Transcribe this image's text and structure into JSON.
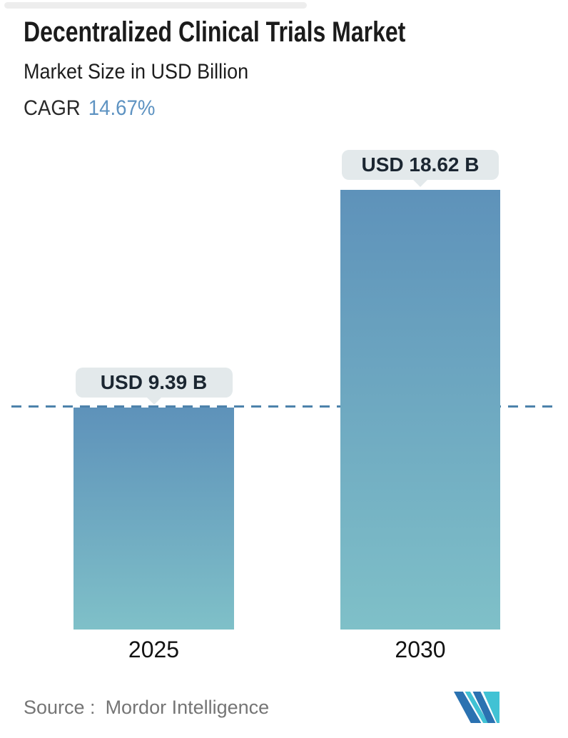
{
  "header": {
    "title": "Decentralized Clinical Trials Market",
    "subtitle": "Market Size in USD Billion",
    "cagr_label": "CAGR",
    "cagr_value": "14.67%"
  },
  "chart_data": {
    "type": "bar",
    "title": "Decentralized Clinical Trials Market",
    "subtitle": "Market Size in USD Billion",
    "cagr_percent": 14.67,
    "categories": [
      "2025",
      "2030"
    ],
    "values": [
      9.39,
      18.62
    ],
    "value_labels": [
      "USD 9.39 B",
      "USD 18.62 B"
    ],
    "unit": "USD Billion",
    "reference_line_value": 9.39,
    "ylim": [
      0,
      18.62
    ],
    "grid": false,
    "legend": "none",
    "bar_gradient": [
      "#5E92BA",
      "#7FC0C8"
    ]
  },
  "footer": {
    "source_label": "Source :",
    "source_name": "Mordor Intelligence",
    "logo_name": "mordor-intelligence-logo"
  },
  "colors": {
    "accent_blue": "#5E93C2",
    "dashed_line": "#4D82AB",
    "tooltip_bg": "#E3E9EB",
    "bar_top": "#5E92BA",
    "bar_bottom": "#7FC0C8",
    "logo_blue": "#2B72B1",
    "logo_teal": "#41C2D4",
    "source_text": "#757575"
  }
}
